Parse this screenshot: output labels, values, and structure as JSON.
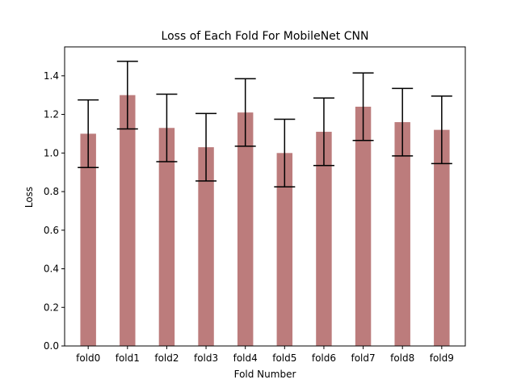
{
  "chart_data": {
    "type": "bar",
    "title": "Loss of Each Fold For MobileNet CNN",
    "xlabel": "Fold Number",
    "ylabel": "Loss",
    "categories": [
      "fold0",
      "fold1",
      "fold2",
      "fold3",
      "fold4",
      "fold5",
      "fold6",
      "fold7",
      "fold8",
      "fold9"
    ],
    "values": [
      1.1,
      1.3,
      1.13,
      1.03,
      1.21,
      1.0,
      1.11,
      1.24,
      1.16,
      1.12
    ],
    "errors": [
      0.175,
      0.175,
      0.175,
      0.175,
      0.175,
      0.175,
      0.175,
      0.175,
      0.175,
      0.175
    ],
    "ylim": [
      0,
      1.55
    ],
    "yticks": [
      0.0,
      0.2,
      0.4,
      0.6,
      0.8,
      1.0,
      1.2,
      1.4
    ],
    "ytick_labels": [
      "0.0",
      "0.2",
      "0.4",
      "0.6",
      "0.8",
      "1.0",
      "1.2",
      "1.4"
    ],
    "grid": false,
    "legend": "none",
    "bar_color": "#bc7c7c",
    "error_color": "#000000"
  }
}
